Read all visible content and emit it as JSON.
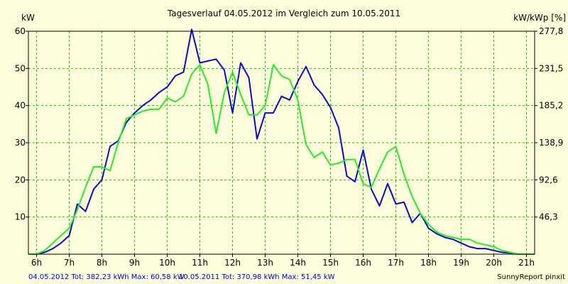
{
  "chart_data": {
    "type": "line",
    "title": "Tagesverlauf 04.05.2012 im Vergleich zum 10.05.2011",
    "ylabel_left": "kW",
    "ylabel_right": "kW/kWp [%]",
    "xlim": [
      5.75,
      21.25
    ],
    "ylim": [
      0,
      60
    ],
    "x_ticks": [
      6,
      7,
      8,
      9,
      10,
      11,
      12,
      13,
      14,
      15,
      16,
      17,
      18,
      19,
      20,
      21
    ],
    "x_tick_labels": [
      "6h",
      "7h",
      "8h",
      "9h",
      "10h",
      "11h",
      "12h",
      "13h",
      "14h",
      "15h",
      "16h",
      "17h",
      "18h",
      "19h",
      "20h",
      "21h"
    ],
    "y_ticks_left": [
      10,
      20,
      30,
      40,
      50,
      60
    ],
    "y_tick_labels_left": [
      "10",
      "20",
      "30",
      "40",
      "50",
      "60"
    ],
    "y_tick_labels_right": [
      "46,3",
      "92,6",
      "138,9",
      "185,2",
      "231,5",
      "277,8"
    ],
    "grid": true,
    "series": [
      {
        "name": "04.05.2012",
        "color": "#0a0ad2",
        "x": [
          5.75,
          6.0,
          6.25,
          6.5,
          6.75,
          7.0,
          7.25,
          7.5,
          7.75,
          8.0,
          8.25,
          8.5,
          8.75,
          9.0,
          9.25,
          9.5,
          9.75,
          10.0,
          10.25,
          10.5,
          10.75,
          11.0,
          11.25,
          11.5,
          11.75,
          12.0,
          12.25,
          12.5,
          12.75,
          13.0,
          13.25,
          13.5,
          13.75,
          14.0,
          14.25,
          14.5,
          14.75,
          15.0,
          15.25,
          15.5,
          15.75,
          16.0,
          16.25,
          16.5,
          16.75,
          17.0,
          17.25,
          17.5,
          17.75,
          18.0,
          18.25,
          18.5,
          18.75,
          19.0,
          19.25,
          19.5,
          19.75,
          20.0,
          20.25,
          20.5,
          20.75,
          21.0,
          21.25
        ],
        "values": [
          0,
          0,
          0.5,
          1.5,
          3,
          5,
          13.5,
          11.5,
          17.5,
          20,
          29,
          30.5,
          35.5,
          38,
          40,
          41.5,
          43.5,
          45,
          48,
          49,
          60.5,
          51.5,
          52,
          52.5,
          49.5,
          38,
          51.5,
          47.5,
          31,
          38,
          38,
          42.5,
          41.5,
          46.5,
          50.5,
          45.5,
          43,
          39.5,
          34,
          21,
          19.5,
          28,
          17.5,
          13,
          19,
          13.5,
          14,
          8.5,
          11,
          7,
          5.5,
          4.5,
          4,
          3,
          2,
          1.5,
          1.5,
          1,
          0.5,
          0.3,
          0,
          0,
          0
        ]
      },
      {
        "name": "10.05.2011",
        "color": "#22ee22",
        "x": [
          5.75,
          6.0,
          6.25,
          6.5,
          6.75,
          7.0,
          7.25,
          7.5,
          7.75,
          8.0,
          8.25,
          8.5,
          8.75,
          9.0,
          9.25,
          9.5,
          9.75,
          10.0,
          10.25,
          10.5,
          10.75,
          11.0,
          11.25,
          11.5,
          11.75,
          12.0,
          12.25,
          12.5,
          12.75,
          13.0,
          13.25,
          13.5,
          13.75,
          14.0,
          14.25,
          14.5,
          14.75,
          15.0,
          15.25,
          15.5,
          15.75,
          16.0,
          16.25,
          16.5,
          16.75,
          17.0,
          17.25,
          17.5,
          17.75,
          18.0,
          18.25,
          18.5,
          18.75,
          19.0,
          19.25,
          19.5,
          19.75,
          20.0,
          20.25,
          20.5,
          20.75,
          21.0,
          21.25
        ],
        "values": [
          0,
          0,
          1,
          3,
          5,
          7,
          12,
          18,
          23.5,
          23.5,
          22.5,
          30,
          36.5,
          37.5,
          38.5,
          39,
          39,
          42,
          41,
          42.5,
          48.5,
          51,
          45.5,
          32.5,
          43.5,
          49,
          43,
          37.5,
          37.5,
          40,
          51,
          48,
          47,
          41.5,
          29.5,
          26,
          27.5,
          24,
          24.5,
          25.5,
          25.5,
          19,
          18,
          23,
          27.5,
          29,
          21.5,
          15.5,
          11,
          8,
          6,
          5,
          4.5,
          4,
          4,
          3,
          2.5,
          2,
          1,
          0.5,
          0,
          0,
          0
        ]
      }
    ],
    "footer": {
      "series1_label": "04.05.2012 Tot: 382,23 kWh Max: 60,58 kW",
      "series2_label": "10.05.2011 Tot: 370,98 kWh Max: 51,45 kW",
      "credit": "SunnyReport pinxit"
    },
    "colors": {
      "background": "#fefedc",
      "grid": "#00cc00",
      "axis": "#000000",
      "footer_text": "#0000cc"
    }
  }
}
